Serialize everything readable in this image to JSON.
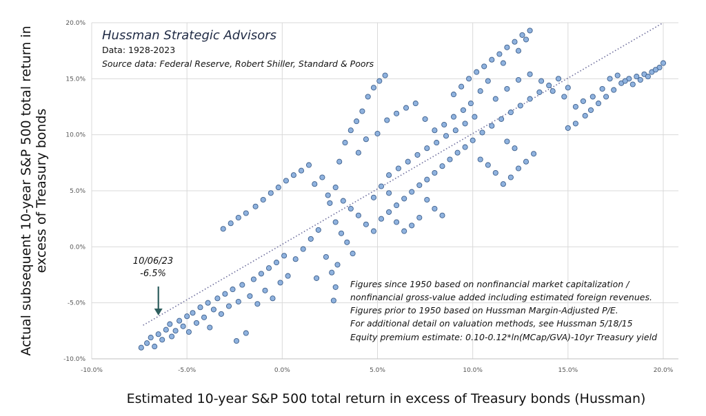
{
  "chart_data": {
    "type": "scatter",
    "title": "Hussman Strategic Advisors",
    "subtitle_lines": [
      "Data: 1928-2023",
      "Source data: Federal Reserve, Robert Shiller, Standard & Poors"
    ],
    "xlabel": "Estimated 10-year S&P 500 total return in excess of Treasury bonds (Hussman)",
    "ylabel_lines": [
      "Actual subsequent 10-year S&P 500 total return in",
      "excess of Treasury bonds"
    ],
    "xlim": [
      -10,
      20
    ],
    "ylim": [
      -10,
      20
    ],
    "x_ticks": [
      -10,
      -5,
      0,
      5,
      10,
      15,
      20
    ],
    "y_ticks": [
      -10,
      -5,
      0,
      5,
      10,
      15,
      20
    ],
    "x_tick_labels": [
      "-10.0%",
      "-5.0%",
      "0.0%",
      "5.0%",
      "10.0%",
      "15.0%",
      "20.0%"
    ],
    "y_tick_labels": [
      "-10.0%",
      "-5.0%",
      "0.0%",
      "5.0%",
      "10.0%",
      "15.0%",
      "20.0%"
    ],
    "grid": true,
    "marker_color": "#8fb2de",
    "marker_edge_color": "#3d5f8c",
    "fit_line": {
      "x": [
        -7.3,
        20
      ],
      "y": [
        -7,
        20
      ],
      "color": "#6a6a9a",
      "style": "dotted"
    },
    "callout": {
      "date": "10/06/23",
      "value": "-6.5%",
      "x": -6.5,
      "arrow_color": "#2e5e5e"
    },
    "notes": [
      "Figures since 1950 based on nonfinancial market capitalization /",
      "nonfinancial gross-value added including estimated foreign revenues.",
      "Figures prior to 1950 based on Hussman Margin-Adjusted P/E.",
      "For additional detail on valuation methods, see Hussman 5/18/15",
      "Equity premium estimate: 0.10-0.12*ln(MCap/GVA)-10yr  Treasury yield"
    ],
    "points": [
      [
        -7.4,
        -9.0
      ],
      [
        -7.1,
        -8.6
      ],
      [
        -6.9,
        -8.1
      ],
      [
        -6.7,
        -8.9
      ],
      [
        -6.5,
        -7.8
      ],
      [
        -6.3,
        -8.3
      ],
      [
        -6.1,
        -7.4
      ],
      [
        -5.9,
        -6.9
      ],
      [
        -5.8,
        -8.0
      ],
      [
        -5.6,
        -7.5
      ],
      [
        -5.4,
        -6.6
      ],
      [
        -5.2,
        -7.1
      ],
      [
        -5.0,
        -6.2
      ],
      [
        -4.9,
        -7.6
      ],
      [
        -4.7,
        -5.9
      ],
      [
        -4.5,
        -6.8
      ],
      [
        -4.3,
        -5.4
      ],
      [
        -4.1,
        -6.3
      ],
      [
        -3.9,
        -5.0
      ],
      [
        -3.8,
        -7.2
      ],
      [
        -3.6,
        -5.6
      ],
      [
        -3.4,
        -4.6
      ],
      [
        -3.2,
        -6.0
      ],
      [
        -3.0,
        -4.2
      ],
      [
        -2.8,
        -5.3
      ],
      [
        -2.6,
        -3.8
      ],
      [
        -2.4,
        -8.4
      ],
      [
        -2.3,
        -4.9
      ],
      [
        -2.1,
        -3.4
      ],
      [
        -1.9,
        -7.7
      ],
      [
        -1.7,
        -4.4
      ],
      [
        -1.5,
        -2.9
      ],
      [
        -1.3,
        -5.1
      ],
      [
        -1.1,
        -2.4
      ],
      [
        -0.9,
        -3.9
      ],
      [
        -0.7,
        -1.9
      ],
      [
        -0.5,
        -4.6
      ],
      [
        -0.3,
        -1.4
      ],
      [
        -0.1,
        -3.2
      ],
      [
        0.1,
        -0.8
      ],
      [
        -3.1,
        1.6
      ],
      [
        -2.7,
        2.1
      ],
      [
        -2.3,
        2.6
      ],
      [
        -1.9,
        3.0
      ],
      [
        -1.4,
        3.6
      ],
      [
        -1.0,
        4.2
      ],
      [
        -0.6,
        4.8
      ],
      [
        -0.2,
        5.3
      ],
      [
        0.2,
        5.9
      ],
      [
        0.6,
        6.4
      ],
      [
        1.0,
        6.8
      ],
      [
        1.4,
        7.3
      ],
      [
        1.7,
        5.6
      ],
      [
        2.1,
        6.2
      ],
      [
        2.5,
        3.9
      ],
      [
        2.8,
        2.2
      ],
      [
        3.1,
        1.2
      ],
      [
        3.4,
        0.4
      ],
      [
        3.7,
        -0.6
      ],
      [
        2.9,
        -1.6
      ],
      [
        0.3,
        -2.6
      ],
      [
        0.7,
        -1.1
      ],
      [
        1.1,
        -0.2
      ],
      [
        1.5,
        0.7
      ],
      [
        1.9,
        1.5
      ],
      [
        2.3,
        -0.9
      ],
      [
        2.6,
        -2.3
      ],
      [
        2.8,
        -3.6
      ],
      [
        2.7,
        -4.8
      ],
      [
        1.8,
        -2.8
      ],
      [
        2.4,
        4.6
      ],
      [
        2.8,
        5.3
      ],
      [
        3.2,
        4.1
      ],
      [
        3.6,
        3.4
      ],
      [
        4.0,
        2.8
      ],
      [
        4.4,
        2.0
      ],
      [
        4.8,
        1.4
      ],
      [
        5.2,
        2.5
      ],
      [
        5.6,
        3.1
      ],
      [
        6.0,
        3.7
      ],
      [
        6.4,
        4.3
      ],
      [
        6.8,
        4.9
      ],
      [
        7.2,
        5.5
      ],
      [
        7.6,
        6.0
      ],
      [
        8.0,
        6.6
      ],
      [
        8.4,
        7.2
      ],
      [
        8.8,
        7.8
      ],
      [
        9.2,
        8.4
      ],
      [
        9.6,
        8.9
      ],
      [
        10.0,
        9.5
      ],
      [
        3.0,
        7.6
      ],
      [
        3.3,
        9.3
      ],
      [
        3.6,
        10.4
      ],
      [
        3.9,
        11.2
      ],
      [
        4.2,
        12.1
      ],
      [
        4.5,
        13.4
      ],
      [
        4.8,
        14.2
      ],
      [
        5.1,
        14.8
      ],
      [
        5.4,
        15.3
      ],
      [
        4.4,
        9.6
      ],
      [
        4.0,
        8.4
      ],
      [
        5.0,
        10.1
      ],
      [
        5.5,
        11.3
      ],
      [
        6.0,
        11.9
      ],
      [
        6.5,
        12.4
      ],
      [
        7.0,
        12.8
      ],
      [
        7.5,
        11.4
      ],
      [
        8.0,
        10.4
      ],
      [
        8.5,
        10.9
      ],
      [
        9.0,
        11.6
      ],
      [
        5.6,
        6.4
      ],
      [
        6.1,
        7.0
      ],
      [
        6.6,
        7.6
      ],
      [
        7.1,
        8.2
      ],
      [
        7.6,
        8.8
      ],
      [
        8.1,
        9.3
      ],
      [
        8.6,
        9.9
      ],
      [
        9.1,
        10.4
      ],
      [
        9.6,
        11.0
      ],
      [
        10.1,
        11.6
      ],
      [
        10.5,
        10.2
      ],
      [
        11.0,
        10.8
      ],
      [
        11.5,
        11.4
      ],
      [
        12.0,
        12.0
      ],
      [
        12.5,
        12.6
      ],
      [
        13.0,
        13.2
      ],
      [
        13.5,
        13.8
      ],
      [
        14.0,
        14.4
      ],
      [
        14.5,
        15.0
      ],
      [
        15.0,
        14.2
      ],
      [
        9.0,
        13.6
      ],
      [
        9.4,
        14.3
      ],
      [
        9.8,
        15.0
      ],
      [
        10.2,
        15.6
      ],
      [
        10.6,
        16.1
      ],
      [
        11.0,
        16.7
      ],
      [
        11.4,
        17.2
      ],
      [
        11.8,
        17.8
      ],
      [
        12.2,
        18.3
      ],
      [
        12.6,
        18.9
      ],
      [
        13.0,
        19.3
      ],
      [
        12.8,
        18.5
      ],
      [
        12.4,
        17.5
      ],
      [
        11.6,
        16.4
      ],
      [
        10.8,
        14.8
      ],
      [
        10.4,
        13.9
      ],
      [
        9.9,
        12.8
      ],
      [
        9.5,
        12.2
      ],
      [
        11.2,
        13.2
      ],
      [
        11.8,
        14.1
      ],
      [
        12.4,
        14.9
      ],
      [
        13.0,
        15.4
      ],
      [
        13.6,
        14.8
      ],
      [
        14.2,
        13.9
      ],
      [
        14.8,
        13.4
      ],
      [
        15.4,
        12.5
      ],
      [
        15.9,
        11.7
      ],
      [
        15.4,
        11.0
      ],
      [
        15.0,
        10.6
      ],
      [
        16.2,
        12.2
      ],
      [
        16.6,
        12.8
      ],
      [
        17.0,
        13.4
      ],
      [
        17.4,
        14.0
      ],
      [
        17.8,
        14.6
      ],
      [
        18.2,
        15.0
      ],
      [
        18.6,
        15.2
      ],
      [
        19.0,
        15.4
      ],
      [
        19.4,
        15.6
      ],
      [
        19.8,
        16.0
      ],
      [
        20.0,
        16.4
      ],
      [
        17.2,
        15.0
      ],
      [
        17.6,
        15.3
      ],
      [
        18.0,
        14.8
      ],
      [
        18.4,
        14.5
      ],
      [
        18.8,
        14.9
      ],
      [
        19.2,
        15.2
      ],
      [
        19.6,
        15.8
      ],
      [
        16.8,
        14.1
      ],
      [
        16.3,
        13.4
      ],
      [
        15.8,
        13.0
      ],
      [
        12.0,
        6.2
      ],
      [
        12.4,
        7.0
      ],
      [
        12.8,
        7.6
      ],
      [
        13.2,
        8.3
      ],
      [
        11.6,
        5.6
      ],
      [
        11.2,
        6.6
      ],
      [
        10.8,
        7.3
      ],
      [
        10.4,
        7.8
      ],
      [
        12.2,
        8.8
      ],
      [
        11.8,
        9.4
      ],
      [
        8.0,
        3.4
      ],
      [
        8.4,
        2.8
      ],
      [
        7.6,
        4.2
      ],
      [
        7.2,
        2.6
      ],
      [
        6.8,
        1.9
      ],
      [
        6.4,
        1.4
      ],
      [
        6.0,
        2.2
      ],
      [
        5.6,
        4.8
      ],
      [
        5.2,
        5.4
      ],
      [
        4.8,
        4.4
      ]
    ]
  }
}
